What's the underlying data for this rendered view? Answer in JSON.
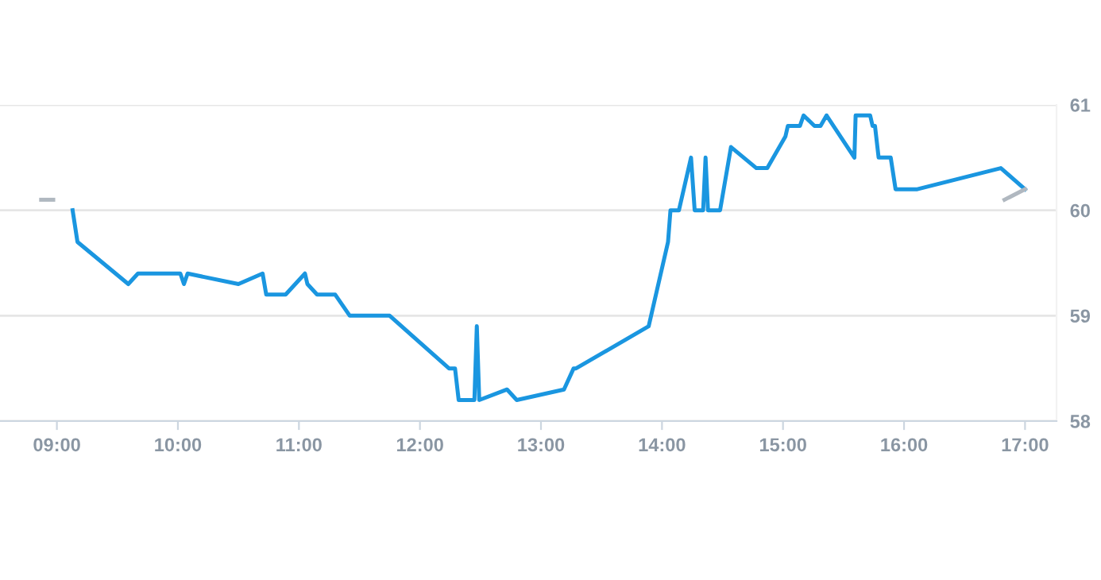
{
  "chart_data": {
    "type": "line",
    "series": [
      {
        "color": "#1a96e0",
        "x": [
          9.13,
          9.17,
          9.59,
          9.67,
          10.02,
          10.05,
          10.08,
          10.5,
          10.7,
          10.73,
          10.89,
          11.05,
          11.07,
          11.15,
          11.3,
          11.42,
          11.75,
          12.24,
          12.29,
          12.32,
          12.45,
          12.47,
          12.49,
          12.72,
          12.8,
          13.19,
          13.27,
          13.29,
          13.89,
          14.05,
          14.07,
          14.14,
          14.24,
          14.27,
          14.34,
          14.36,
          14.38,
          14.48,
          14.57,
          14.78,
          14.87,
          15.02,
          15.04,
          15.14,
          15.17,
          15.26,
          15.31,
          15.36,
          15.59,
          15.6,
          15.72,
          15.74,
          15.76,
          15.79,
          15.89,
          15.93,
          16.11,
          16.8,
          17.0
        ],
        "values": [
          60.0,
          59.7,
          59.3,
          59.4,
          59.4,
          59.3,
          59.4,
          59.3,
          59.4,
          59.2,
          59.2,
          59.4,
          59.3,
          59.2,
          59.2,
          59.0,
          59.0,
          58.5,
          58.5,
          58.2,
          58.2,
          58.9,
          58.2,
          58.3,
          58.2,
          58.3,
          58.5,
          58.5,
          58.9,
          59.7,
          60.0,
          60.0,
          60.5,
          60.0,
          60.0,
          60.5,
          60.0,
          60.0,
          60.6,
          60.4,
          60.4,
          60.7,
          60.8,
          60.8,
          60.9,
          60.8,
          60.8,
          60.9,
          60.5,
          60.9,
          60.9,
          60.8,
          60.8,
          60.5,
          60.5,
          60.2,
          60.2,
          60.4,
          60.2
        ]
      },
      {
        "color": "#b0b8c0",
        "x": [
          8.87,
          8.97
        ],
        "values": [
          60.1,
          60.1
        ]
      },
      {
        "color": "#b0b8c0",
        "x": [
          16.83,
          17.0
        ],
        "values": [
          60.1,
          60.2
        ]
      }
    ],
    "xlim": [
      8.53,
      17.26
    ],
    "xticks": [
      {
        "value": 9,
        "label": "09:00"
      },
      {
        "value": 10,
        "label": "10:00"
      },
      {
        "value": 11,
        "label": "11:00"
      },
      {
        "value": 12,
        "label": "12:00"
      },
      {
        "value": 13,
        "label": "13:00"
      },
      {
        "value": 14,
        "label": "14:00"
      },
      {
        "value": 15,
        "label": "15:00"
      },
      {
        "value": 16,
        "label": "16:00"
      },
      {
        "value": 17,
        "label": "17:00"
      }
    ],
    "ylim": [
      58,
      61
    ],
    "yticks": [
      58,
      59,
      60,
      61
    ],
    "grid": "y",
    "legend": false,
    "line_style": "solid",
    "marker": "none"
  }
}
